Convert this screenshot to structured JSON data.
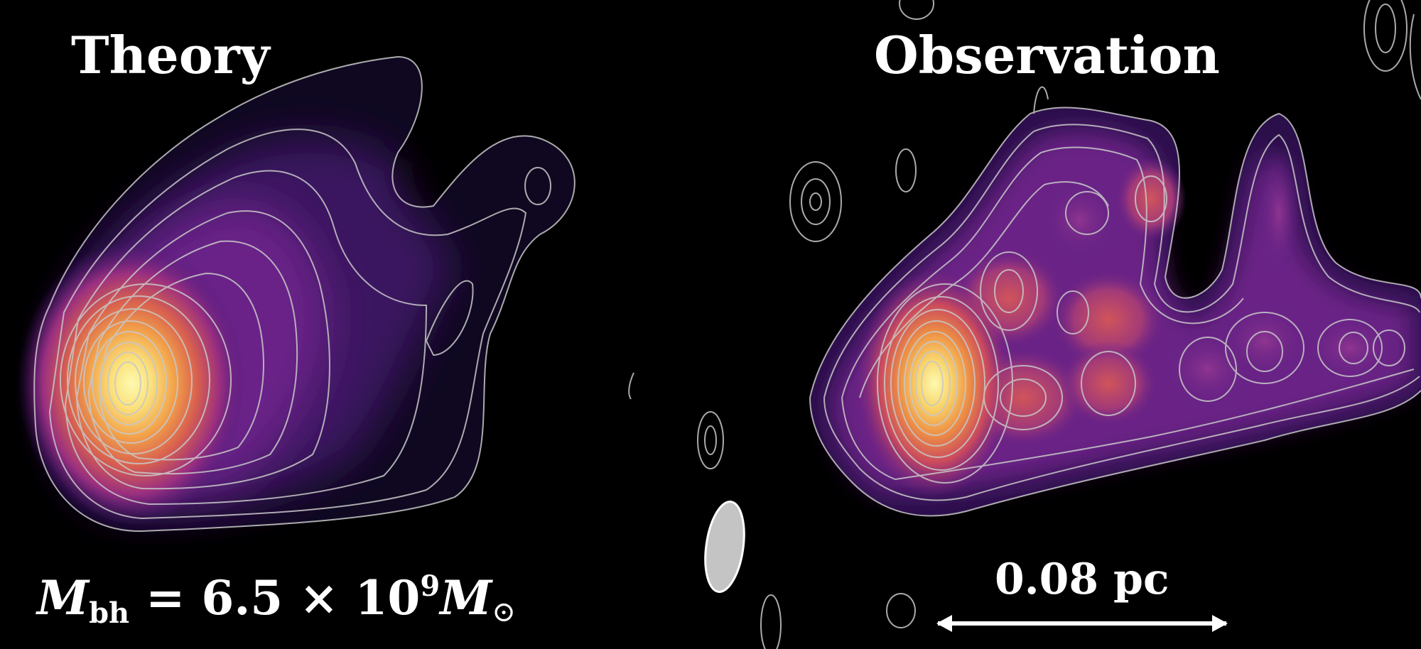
{
  "panels": {
    "theory": {
      "title": "Theory"
    },
    "observation": {
      "title": "Observation"
    }
  },
  "mass_label": {
    "symbol": "M",
    "subscript": "bh",
    "equals": " = ",
    "coefficient": "6.5",
    "times": " × ",
    "base": "10",
    "exponent": "9",
    "unit_symbol": "M",
    "unit_subscript": "⊙"
  },
  "scale_bar": {
    "label": "0.08 pc"
  },
  "colors": {
    "background": "#000000",
    "contour": "#c8c8c8",
    "colormap": [
      "#0d0717",
      "#2a0f4a",
      "#5a1f82",
      "#8a2f92",
      "#c24d6e",
      "#e8803e",
      "#f7c25a",
      "#fcf6a6"
    ],
    "beam": "#c8c8c8"
  }
}
